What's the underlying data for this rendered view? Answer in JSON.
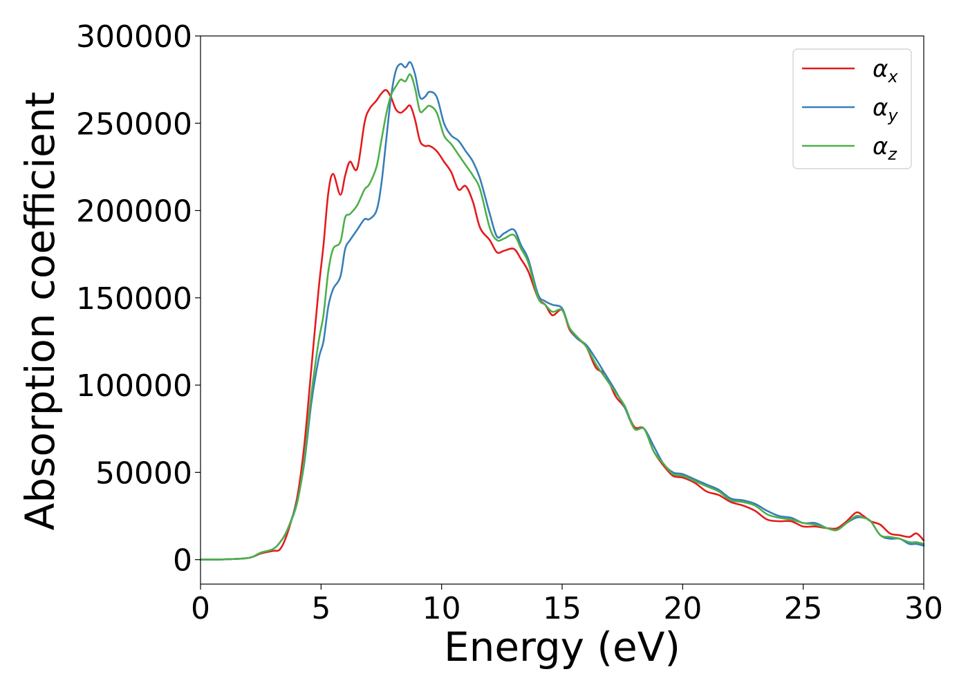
{
  "chart_data": {
    "type": "line",
    "xlabel": "Energy (eV)",
    "ylabel": "Absorption coefficient",
    "xlim": [
      0,
      30
    ],
    "ylim": [
      -14000,
      300000
    ],
    "xticks": [
      0,
      5,
      10,
      15,
      20,
      25,
      30
    ],
    "xtick_labels": [
      "0",
      "5",
      "10",
      "15",
      "20",
      "25",
      "30"
    ],
    "yticks": [
      0,
      50000,
      100000,
      150000,
      200000,
      250000,
      300000
    ],
    "ytick_labels": [
      "0",
      "50000",
      "100000",
      "150000",
      "200000",
      "250000",
      "300000"
    ],
    "grid": false,
    "legend_position": "top-right",
    "series": [
      {
        "name": "α",
        "subscript": "x",
        "color": "#e41a1c",
        "x": [
          0,
          1,
          2,
          2.5,
          3,
          3.3,
          3.6,
          4,
          4.3,
          4.6,
          4.9,
          5.1,
          5.3,
          5.5,
          5.8,
          6.0,
          6.2,
          6.5,
          6.8,
          7.0,
          7.3,
          7.5,
          7.7,
          7.9,
          8.1,
          8.3,
          8.5,
          8.7,
          8.9,
          9.1,
          9.3,
          9.5,
          9.8,
          10.1,
          10.4,
          10.7,
          11.0,
          11.3,
          11.6,
          12.0,
          12.3,
          12.6,
          13.0,
          13.3,
          13.6,
          14.0,
          14.3,
          14.6,
          15.0,
          15.3,
          15.6,
          16.0,
          16.4,
          16.8,
          17.2,
          17.6,
          18.0,
          18.4,
          18.8,
          19.2,
          19.6,
          20.0,
          20.5,
          21.0,
          21.5,
          22.0,
          22.5,
          23.0,
          23.5,
          24.0,
          24.5,
          25.0,
          25.5,
          26.0,
          26.4,
          26.8,
          27.2,
          27.5,
          27.8,
          28.2,
          28.6,
          29.0,
          29.4,
          29.7,
          30.0
        ],
        "y": [
          0,
          200,
          1000,
          3500,
          5000,
          6000,
          15000,
          35000,
          65000,
          110000,
          155000,
          180000,
          210000,
          221000,
          209000,
          220000,
          228000,
          224000,
          250000,
          258000,
          263000,
          267000,
          269000,
          265000,
          258000,
          256000,
          258000,
          260000,
          252000,
          240000,
          237000,
          237000,
          234000,
          228000,
          222000,
          212000,
          214000,
          205000,
          190000,
          183000,
          176000,
          177000,
          178000,
          172000,
          165000,
          150000,
          146000,
          140000,
          143000,
          132000,
          127000,
          122000,
          110000,
          106000,
          94000,
          87000,
          76000,
          75000,
          62000,
          54000,
          48000,
          47000,
          44000,
          39000,
          37000,
          33000,
          31000,
          28000,
          23000,
          22000,
          22000,
          19000,
          19000,
          18000,
          18000,
          22000,
          27000,
          25000,
          22000,
          20000,
          15000,
          14000,
          13000,
          15000,
          11000
        ]
      },
      {
        "name": "α",
        "subscript": "y",
        "color": "#377eb8",
        "x": [
          0,
          1,
          2,
          2.5,
          3,
          3.3,
          3.6,
          4,
          4.3,
          4.6,
          4.9,
          5.1,
          5.3,
          5.5,
          5.8,
          6.0,
          6.2,
          6.5,
          6.8,
          7.0,
          7.3,
          7.5,
          7.7,
          7.9,
          8.1,
          8.3,
          8.5,
          8.7,
          8.9,
          9.1,
          9.3,
          9.5,
          9.8,
          10.1,
          10.4,
          10.7,
          11.0,
          11.3,
          11.6,
          12.0,
          12.3,
          12.6,
          13.0,
          13.3,
          13.6,
          14.0,
          14.3,
          14.6,
          15.0,
          15.3,
          15.6,
          16.0,
          16.4,
          16.8,
          17.2,
          17.6,
          18.0,
          18.4,
          18.8,
          19.2,
          19.6,
          20.0,
          20.5,
          21.0,
          21.5,
          22.0,
          22.5,
          23.0,
          23.5,
          24.0,
          24.5,
          25.0,
          25.5,
          26.0,
          26.4,
          26.8,
          27.2,
          27.5,
          27.8,
          28.2,
          28.6,
          29.0,
          29.4,
          29.7,
          30.0
        ],
        "y": [
          0,
          200,
          1000,
          4000,
          6000,
          10000,
          17000,
          33000,
          55000,
          90000,
          115000,
          125000,
          145000,
          155000,
          162000,
          178000,
          183000,
          189000,
          195000,
          195000,
          200000,
          215000,
          240000,
          265000,
          280000,
          284000,
          282000,
          285000,
          278000,
          265000,
          265000,
          268000,
          265000,
          250000,
          243000,
          240000,
          234000,
          228000,
          218000,
          198000,
          185000,
          187000,
          189000,
          180000,
          172000,
          152000,
          148000,
          146000,
          144000,
          133000,
          127000,
          123000,
          115000,
          106000,
          97000,
          87000,
          75000,
          75000,
          65000,
          55000,
          50000,
          49000,
          46000,
          43000,
          40000,
          35000,
          34000,
          32000,
          28000,
          25000,
          24000,
          21000,
          21000,
          18000,
          17000,
          21000,
          24000,
          24000,
          22000,
          14000,
          12000,
          12000,
          9000,
          9000,
          8000
        ]
      },
      {
        "name": "α",
        "subscript": "z",
        "color": "#4daf4a",
        "x": [
          0,
          1,
          2,
          2.5,
          3,
          3.3,
          3.6,
          4,
          4.3,
          4.6,
          4.9,
          5.1,
          5.3,
          5.5,
          5.8,
          6.0,
          6.2,
          6.5,
          6.8,
          7.0,
          7.3,
          7.5,
          7.7,
          7.9,
          8.1,
          8.3,
          8.5,
          8.7,
          8.9,
          9.1,
          9.3,
          9.5,
          9.8,
          10.1,
          10.4,
          10.7,
          11.0,
          11.3,
          11.6,
          12.0,
          12.3,
          12.6,
          13.0,
          13.3,
          13.6,
          14.0,
          14.3,
          14.6,
          15.0,
          15.3,
          15.6,
          16.0,
          16.4,
          16.8,
          17.2,
          17.6,
          18.0,
          18.4,
          18.8,
          19.2,
          19.6,
          20.0,
          20.5,
          21.0,
          21.5,
          22.0,
          22.5,
          23.0,
          23.5,
          24.0,
          24.5,
          25.0,
          25.5,
          26.0,
          26.4,
          26.8,
          27.2,
          27.5,
          27.8,
          28.2,
          28.6,
          29.0,
          29.4,
          29.7,
          30.0
        ],
        "y": [
          0,
          200,
          1000,
          4000,
          6000,
          10000,
          17000,
          32000,
          57000,
          95000,
          125000,
          140000,
          165000,
          178000,
          182000,
          196000,
          198000,
          203000,
          212000,
          215000,
          225000,
          240000,
          255000,
          266000,
          271000,
          275000,
          274000,
          278000,
          270000,
          257000,
          258000,
          260000,
          256000,
          243000,
          238000,
          232000,
          226000,
          220000,
          212000,
          190000,
          183000,
          184000,
          186000,
          178000,
          170000,
          150000,
          146000,
          142000,
          143000,
          133000,
          128000,
          122000,
          112000,
          104000,
          96000,
          88000,
          75000,
          75000,
          62000,
          55000,
          49000,
          48000,
          45000,
          42000,
          39000,
          34000,
          33000,
          31000,
          26000,
          24000,
          23000,
          21000,
          20000,
          18000,
          17000,
          21000,
          25000,
          24000,
          22000,
          14000,
          13000,
          12000,
          10000,
          10000,
          9000
        ]
      }
    ]
  }
}
